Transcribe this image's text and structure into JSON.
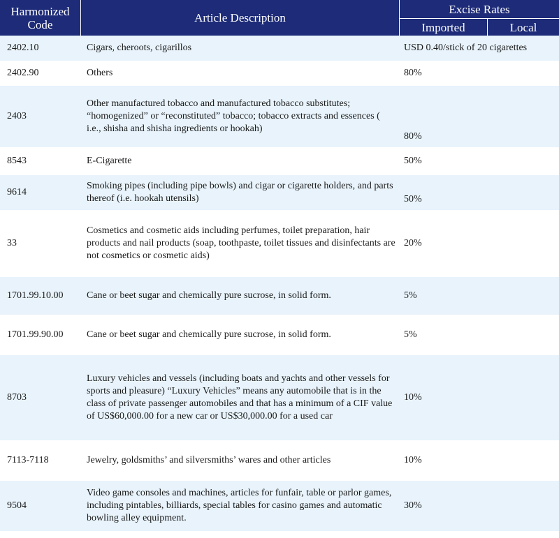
{
  "header": {
    "code": "Harmonized Code",
    "description": "Article Description",
    "rates": "Excise Rates",
    "imported": "Imported",
    "local": "Local"
  },
  "rows": [
    {
      "code": "2402.10",
      "description": "Cigars, cheroots, cigarillos",
      "imported": "USD 0.40/stick of 20 cigarettes",
      "local": ""
    },
    {
      "code": "2402.90",
      "description": "Others",
      "imported": "80%",
      "local": ""
    },
    {
      "code": "2403",
      "description": "Other manufactured tobacco and manufactured tobacco substitutes; “homogenized” or “reconstituted” tobacco; tobacco extracts and essences ( i.e., shisha and shisha ingredients or hookah)",
      "imported": "80%",
      "local": ""
    },
    {
      "code": "8543",
      "description": "E-Cigarette",
      "imported": "50%",
      "local": ""
    },
    {
      "code": "9614",
      "description": "Smoking pipes (including pipe bowls) and cigar or cigarette holders, and parts thereof (i.e. hookah utensils)",
      "imported": "50%",
      "local": ""
    },
    {
      "code": "33",
      "description": "Cosmetics and cosmetic aids including perfumes, toilet preparation, hair products and nail products (soap, toothpaste, toilet tissues and disinfectants are not cosmetics or cosmetic aids)",
      "imported": "20%",
      "local": ""
    },
    {
      "code": "1701.99.10.00",
      "description": "Cane or beet sugar and chemically pure sucrose, in solid form.",
      "imported": "5%",
      "local": ""
    },
    {
      "code": "1701.99.90.00",
      "description": "Cane or beet sugar and chemically pure sucrose, in solid form.",
      "imported": "5%",
      "local": ""
    },
    {
      "code": "8703",
      "description": "Luxury vehicles and vessels (including boats and yachts and other vessels for sports and pleasure) “Luxury Vehicles” means any automobile that is in the class of private passenger automobiles and that has a minimum of a CIF value of US$60,000.00 for a new car or US$30,000.00 for a used car",
      "imported": "10%",
      "local": ""
    },
    {
      "code": "7113-7118",
      "description": "Jewelry, goldsmiths’ and silversmiths’ wares and other articles",
      "imported": "10%",
      "local": ""
    },
    {
      "code": "9504",
      "description": "Video game consoles and machines, articles for funfair, table or parlor games, including pintables, billiards, special tables for casino games and automatic bowling alley equipment.",
      "imported": "30%",
      "local": ""
    }
  ]
}
